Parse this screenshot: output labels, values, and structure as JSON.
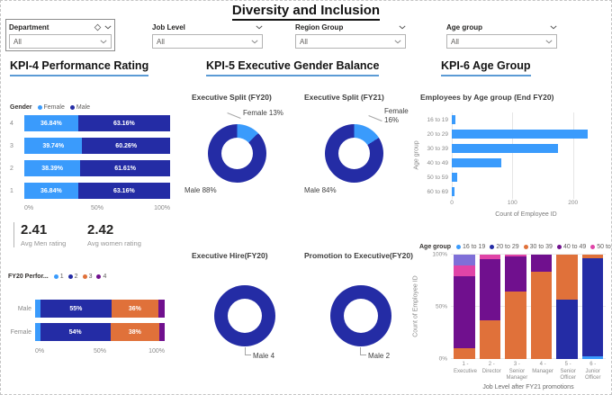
{
  "header": {
    "title": "Diversity and Inclusion"
  },
  "filters": [
    {
      "label": "Department",
      "value": "All",
      "has_eraser": true
    },
    {
      "label": "Job Level",
      "value": "All",
      "has_eraser": false
    },
    {
      "label": "Region Group",
      "value": "All",
      "has_eraser": false
    },
    {
      "label": "Age group",
      "value": "All",
      "has_eraser": false
    }
  ],
  "kpi4": {
    "header": "KPI-4 Performance Rating",
    "gender_legend_title": "Gender",
    "gender_legend": [
      {
        "label": "Female",
        "color": "#3A9BFC"
      },
      {
        "label": "Male",
        "color": "#242CA5"
      }
    ],
    "avg_men_value": "2.41",
    "avg_men_label": "Avg Men rating",
    "avg_women_value": "2.42",
    "avg_women_label": "Avg women rating",
    "fy20_legend_title": "FY20 Perfor...",
    "fy20_legend": [
      {
        "label": "1",
        "color": "#3A9BFC"
      },
      {
        "label": "2",
        "color": "#242CA5"
      },
      {
        "label": "3",
        "color": "#E0713A"
      },
      {
        "label": "4",
        "color": "#70108E"
      }
    ]
  },
  "kpi5": {
    "header": "KPI-5 Executive Gender Balance"
  },
  "kpi6": {
    "header": "KPI-6 Age Group",
    "legend_title": "Age group",
    "age_legend": [
      {
        "label": "16 to 19",
        "color": "#3A9BFC"
      },
      {
        "label": "20 to 29",
        "color": "#242CA5"
      },
      {
        "label": "30 to 39",
        "color": "#E0713A"
      },
      {
        "label": "40 to 49",
        "color": "#70108E"
      },
      {
        "label": "50 to 59",
        "color": "#E044A7"
      }
    ],
    "legend_more_icon": "▷"
  },
  "colors": {
    "accent_underline": "#5b9bd5",
    "female_light_blue": "#3A9BFC",
    "male_navy": "#242CA5",
    "orange": "#E0713A",
    "purple": "#70108E",
    "magenta": "#E044A7",
    "lavender": "#7F6FD8"
  },
  "chart_data": [
    {
      "id": "kpi4-performance",
      "type": "bar",
      "variant": "hstack100",
      "title": "",
      "categories": [
        "4",
        "3",
        "2",
        "1"
      ],
      "series": [
        {
          "name": "Female",
          "color": "#3A9BFC",
          "values": [
            36.84,
            39.74,
            38.39,
            36.84
          ]
        },
        {
          "name": "Male",
          "color": "#242CA5",
          "values": [
            63.16,
            60.26,
            61.61,
            63.16
          ]
        }
      ],
      "label_decimals": 2,
      "min_label": 10,
      "x_ticks": [
        "0%",
        "50%",
        "100%"
      ],
      "xlim": [
        0,
        100
      ]
    },
    {
      "id": "exec-split-fy20",
      "type": "pie",
      "variant": "donut",
      "title": "Executive Split (FY20)",
      "slices": [
        {
          "name": "Female",
          "label": "Female 13%",
          "value": 13,
          "color": "#3A9BFC"
        },
        {
          "name": "Male",
          "label": "Male 88%",
          "value": 88,
          "color": "#242CA5"
        }
      ]
    },
    {
      "id": "exec-split-fy21",
      "type": "pie",
      "variant": "donut",
      "title": "Executive Split (FY21)",
      "slices": [
        {
          "name": "Female",
          "label": "Female 16%",
          "value": 16,
          "color": "#3A9BFC"
        },
        {
          "name": "Male",
          "label": "Male 84%",
          "value": 84,
          "color": "#242CA5"
        }
      ]
    },
    {
      "id": "exec-hire-fy20",
      "type": "pie",
      "variant": "donut",
      "title": "Executive Hire(FY20)",
      "slices": [
        {
          "name": "Male",
          "label": "Male 4",
          "value": 4,
          "color": "#242CA5"
        }
      ]
    },
    {
      "id": "promo-exec-fy20",
      "type": "pie",
      "variant": "donut",
      "title": "Promotion to Executive(FY20)",
      "slices": [
        {
          "name": "Male",
          "label": "Male 2",
          "value": 2,
          "color": "#242CA5"
        }
      ]
    },
    {
      "id": "employees-by-age",
      "type": "bar",
      "variant": "hbar",
      "title": "Employees by Age group (End FY20)",
      "categories": [
        "16 to 19",
        "20 to 29",
        "30 to 39",
        "40 to 49",
        "50 to 59",
        "60 to 69"
      ],
      "values": [
        6,
        224,
        175,
        82,
        9,
        4
      ],
      "color": "#3A9BFC",
      "xmax": 245,
      "x_ticks": [
        {
          "v": 0,
          "label": "0"
        },
        {
          "v": 100,
          "label": "100"
        },
        {
          "v": 200,
          "label": "200"
        }
      ],
      "xlabel": "Count of Employee ID",
      "ylabel": "Age group"
    },
    {
      "id": "job-level-promotions",
      "type": "bar",
      "variant": "vstack100",
      "title": "",
      "categories": [
        [
          "1 -",
          "Executive"
        ],
        [
          "2 -",
          "Director"
        ],
        [
          "3 - Senior",
          "Manager"
        ],
        [
          "4 -",
          "Manager"
        ],
        [
          "5 - Senior",
          "Officer"
        ],
        [
          "6 - Junior",
          "Officer"
        ]
      ],
      "colors": {
        "16 to 19": "#3A9BFC",
        "20 to 29": "#242CA5",
        "30 to 39": "#E0713A",
        "40 to 49": "#70108E",
        "50 to 59": "#E044A7",
        "60 to 69": "#7F6FD8"
      },
      "columns": [
        [
          {
            "name": "30 to 39",
            "v": 10
          },
          {
            "name": "40 to 49",
            "v": 69
          },
          {
            "name": "50 to 59",
            "v": 11
          },
          {
            "name": "60 to 69",
            "v": 10
          }
        ],
        [
          {
            "name": "30 to 39",
            "v": 37
          },
          {
            "name": "40 to 49",
            "v": 59
          },
          {
            "name": "50 to 59",
            "v": 4
          }
        ],
        [
          {
            "name": "30 to 39",
            "v": 65
          },
          {
            "name": "40 to 49",
            "v": 33
          },
          {
            "name": "50 to 59",
            "v": 2
          }
        ],
        [
          {
            "name": "30 to 39",
            "v": 84
          },
          {
            "name": "40 to 49",
            "v": 16
          }
        ],
        [
          {
            "name": "20 to 29",
            "v": 57
          },
          {
            "name": "30 to 39",
            "v": 43
          }
        ],
        [
          {
            "name": "16 to 19",
            "v": 3
          },
          {
            "name": "20 to 29",
            "v": 94
          },
          {
            "name": "30 to 39",
            "v": 3
          }
        ]
      ],
      "y_ticks": [
        "0%",
        "50%",
        "100%"
      ],
      "xlabel": "Job Level after FY21 promotions",
      "ylabel": "Count of Employee ID"
    },
    {
      "id": "fy20-perf-by-gender",
      "type": "bar",
      "variant": "hstack100",
      "title": "",
      "categories": [
        "Male",
        "Female"
      ],
      "series": [
        {
          "name": "1",
          "color": "#3A9BFC",
          "values": [
            4,
            4
          ]
        },
        {
          "name": "2",
          "color": "#242CA5",
          "values": [
            55,
            54
          ]
        },
        {
          "name": "3",
          "color": "#E0713A",
          "values": [
            36,
            38
          ]
        },
        {
          "name": "4",
          "color": "#70108E",
          "values": [
            5,
            4
          ]
        }
      ],
      "label_decimals": 0,
      "min_label": 10,
      "x_ticks": [
        "0%",
        "50%",
        "100%"
      ],
      "xlim": [
        0,
        100
      ]
    }
  ]
}
